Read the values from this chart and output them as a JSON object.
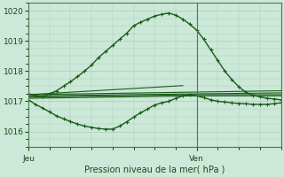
{
  "title": "Pression niveau de la mer( hPa )",
  "background_color": "#cce8d8",
  "grid_color": "#aaccbb",
  "line_color": "#1a5c1a",
  "ylim": [
    1015.55,
    1020.25
  ],
  "yticks": [
    1016,
    1017,
    1018,
    1019,
    1020
  ],
  "xlim": [
    0,
    72
  ],
  "xticks": [
    0,
    48
  ],
  "xticklabels": [
    "Jeu",
    "Ven"
  ],
  "vline_x": 48,
  "series_peak": {
    "x": [
      0,
      2,
      4,
      6,
      8,
      10,
      12,
      14,
      16,
      18,
      20,
      22,
      24,
      26,
      28,
      30,
      32,
      34,
      36,
      38,
      40,
      42,
      44,
      46,
      48,
      50,
      52,
      54,
      56,
      58,
      60,
      62,
      64,
      66,
      68,
      70,
      72
    ],
    "y": [
      1017.25,
      1017.2,
      1017.15,
      1017.25,
      1017.35,
      1017.5,
      1017.65,
      1017.82,
      1018.0,
      1018.2,
      1018.45,
      1018.65,
      1018.85,
      1019.05,
      1019.25,
      1019.5,
      1019.62,
      1019.72,
      1019.82,
      1019.88,
      1019.92,
      1019.85,
      1019.72,
      1019.55,
      1019.35,
      1019.05,
      1018.7,
      1018.35,
      1018.0,
      1017.72,
      1017.48,
      1017.3,
      1017.2,
      1017.15,
      1017.1,
      1017.08,
      1017.05
    ]
  },
  "series_flat1": {
    "x": [
      0,
      72
    ],
    "y": [
      1017.22,
      1017.35
    ]
  },
  "series_flat2": {
    "x": [
      0,
      72
    ],
    "y": [
      1017.18,
      1017.28
    ]
  },
  "series_flat3": {
    "x": [
      0,
      48,
      72
    ],
    "y": [
      1017.14,
      1017.22,
      1017.22
    ]
  },
  "series_flat4": {
    "x": [
      0,
      48,
      72
    ],
    "y": [
      1017.1,
      1017.18,
      1017.18
    ]
  },
  "series_straight": {
    "x": [
      0,
      44
    ],
    "y": [
      1017.22,
      1017.52
    ]
  },
  "series_dip": {
    "x": [
      0,
      2,
      4,
      6,
      8,
      10,
      12,
      14,
      16,
      18,
      20,
      22,
      24,
      26,
      28,
      30,
      32,
      34,
      36,
      38,
      40,
      42,
      44,
      46,
      48,
      50,
      52,
      54,
      56,
      58,
      60,
      62,
      64,
      66,
      68,
      70,
      72
    ],
    "y": [
      1017.05,
      1016.9,
      1016.78,
      1016.65,
      1016.52,
      1016.42,
      1016.33,
      1016.25,
      1016.18,
      1016.14,
      1016.1,
      1016.08,
      1016.08,
      1016.18,
      1016.32,
      1016.48,
      1016.62,
      1016.75,
      1016.88,
      1016.95,
      1017.0,
      1017.1,
      1017.18,
      1017.22,
      1017.18,
      1017.12,
      1017.05,
      1017.0,
      1016.98,
      1016.95,
      1016.93,
      1016.92,
      1016.9,
      1016.9,
      1016.9,
      1016.92,
      1016.95
    ]
  }
}
